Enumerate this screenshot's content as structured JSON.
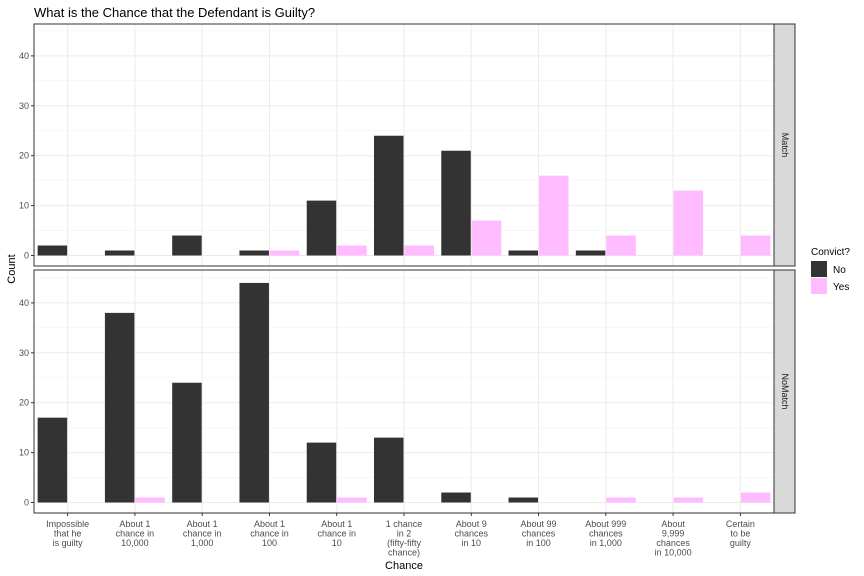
{
  "chart_data": {
    "type": "bar",
    "title": "What is the Chance that the Defendant is Guilty?",
    "xlabel": "Chance",
    "ylabel": "Count",
    "categories": [
      [
        "Impossible",
        "that he",
        "is guilty"
      ],
      [
        "About 1",
        "chance in",
        "10,000"
      ],
      [
        "About 1",
        "chance in",
        "1,000"
      ],
      [
        "About 1",
        "chance in",
        "100"
      ],
      [
        "About 1",
        "chance in",
        "10"
      ],
      [
        "1 chance",
        "in 2",
        "(fifty-fifty",
        "chance)"
      ],
      [
        "About 9",
        "chances",
        "in 10"
      ],
      [
        "About 99",
        "chances",
        "in 100"
      ],
      [
        "About 999",
        "chances",
        "in 1,000"
      ],
      [
        "About",
        "9,999",
        "chances",
        "in 10,000"
      ],
      [
        "Certain",
        "to be",
        "guilty"
      ]
    ],
    "ylim": [
      0,
      45
    ],
    "yticks": [
      0,
      10,
      20,
      30,
      40
    ],
    "grid": true,
    "legend": {
      "title": "Convict?",
      "placement": "right",
      "entries": [
        {
          "label": "No",
          "color": "#333333"
        },
        {
          "label": "Yes",
          "color": "#ffbbff"
        }
      ]
    },
    "panels": [
      {
        "strip": "Match",
        "series": [
          {
            "name": "No",
            "values": [
              2,
              1,
              4,
              1,
              11,
              24,
              21,
              1,
              1,
              0,
              0
            ]
          },
          {
            "name": "Yes",
            "values": [
              0,
              0,
              0,
              1,
              2,
              2,
              7,
              16,
              4,
              13,
              4
            ]
          }
        ]
      },
      {
        "strip": "NoMatch",
        "series": [
          {
            "name": "No",
            "values": [
              17,
              38,
              24,
              44,
              12,
              13,
              2,
              1,
              0,
              0,
              0
            ]
          },
          {
            "name": "Yes",
            "values": [
              0,
              1,
              0,
              0,
              1,
              0,
              0,
              0,
              1,
              1,
              2
            ]
          }
        ]
      }
    ]
  }
}
